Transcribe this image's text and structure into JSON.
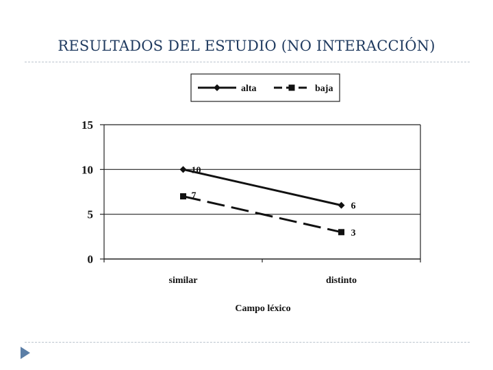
{
  "slide": {
    "title": "RESULTADOS DEL ESTUDIO (NO INTERACCIÓN)"
  },
  "chart_data": {
    "type": "line",
    "categories": [
      "similar",
      "distinto"
    ],
    "series": [
      {
        "name": "alta",
        "values": [
          10,
          6
        ],
        "style": "solid",
        "marker": "diamond",
        "color": "#111111"
      },
      {
        "name": "baja",
        "values": [
          7,
          3
        ],
        "style": "dashed",
        "marker": "square",
        "color": "#111111"
      }
    ],
    "data_labels": [
      [
        "10",
        "6"
      ],
      [
        "7",
        "3"
      ]
    ],
    "xlabel": "Campo léxico",
    "ylabel": "",
    "ylim": [
      0,
      15
    ],
    "yticks": [
      "0",
      "5",
      "10",
      "15"
    ],
    "grid": true,
    "legend": "top"
  }
}
